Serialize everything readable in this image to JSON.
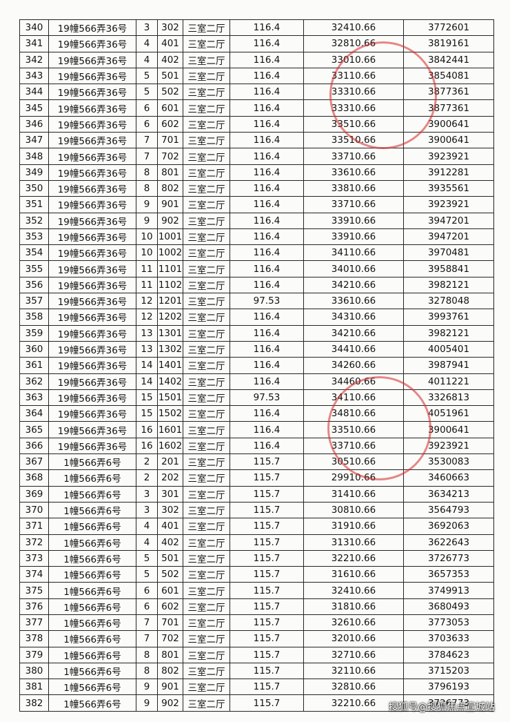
{
  "table": {
    "rows": [
      [
        "340",
        "19幢566弄36号",
        "3",
        "302",
        "三室二厅",
        "116.4",
        "32410.66",
        "3772601"
      ],
      [
        "341",
        "19幢566弄36号",
        "4",
        "401",
        "三室二厅",
        "116.4",
        "32810.66",
        "3819161"
      ],
      [
        "342",
        "19幢566弄36号",
        "4",
        "402",
        "三室二厅",
        "116.4",
        "33010.66",
        "3842441"
      ],
      [
        "343",
        "19幢566弄36号",
        "5",
        "501",
        "三室二厅",
        "116.4",
        "33110.66",
        "3854081"
      ],
      [
        "344",
        "19幢566弄36号",
        "5",
        "502",
        "三室二厅",
        "116.4",
        "33310.66",
        "3877361"
      ],
      [
        "345",
        "19幢566弄36号",
        "6",
        "601",
        "三室二厅",
        "116.4",
        "33310.66",
        "3877361"
      ],
      [
        "346",
        "19幢566弄36号",
        "6",
        "602",
        "三室二厅",
        "116.4",
        "33510.66",
        "3900641"
      ],
      [
        "347",
        "19幢566弄36号",
        "7",
        "701",
        "三室二厅",
        "116.4",
        "33510.66",
        "3900641"
      ],
      [
        "348",
        "19幢566弄36号",
        "7",
        "702",
        "三室二厅",
        "116.4",
        "33710.66",
        "3923921"
      ],
      [
        "349",
        "19幢566弄36号",
        "8",
        "801",
        "三室二厅",
        "116.4",
        "33610.66",
        "3912281"
      ],
      [
        "350",
        "19幢566弄36号",
        "8",
        "802",
        "三室二厅",
        "116.4",
        "33810.66",
        "3935561"
      ],
      [
        "351",
        "19幢566弄36号",
        "9",
        "901",
        "三室二厅",
        "116.4",
        "33710.66",
        "3923921"
      ],
      [
        "352",
        "19幢566弄36号",
        "9",
        "902",
        "三室二厅",
        "116.4",
        "33910.66",
        "3947201"
      ],
      [
        "353",
        "19幢566弄36号",
        "10",
        "1001",
        "三室二厅",
        "116.4",
        "33910.66",
        "3947201"
      ],
      [
        "354",
        "19幢566弄36号",
        "10",
        "1002",
        "三室二厅",
        "116.4",
        "34110.66",
        "3970481"
      ],
      [
        "355",
        "19幢566弄36号",
        "11",
        "1101",
        "三室二厅",
        "116.4",
        "34010.66",
        "3958841"
      ],
      [
        "356",
        "19幢566弄36号",
        "11",
        "1102",
        "三室二厅",
        "116.4",
        "34210.66",
        "3982121"
      ],
      [
        "357",
        "19幢566弄36号",
        "12",
        "1201",
        "三室二厅",
        "97.53",
        "33610.66",
        "3278048"
      ],
      [
        "358",
        "19幢566弄36号",
        "12",
        "1202",
        "三室二厅",
        "116.4",
        "34310.66",
        "3993761"
      ],
      [
        "359",
        "19幢566弄36号",
        "13",
        "1301",
        "三室二厅",
        "116.4",
        "34210.66",
        "3982121"
      ],
      [
        "360",
        "19幢566弄36号",
        "13",
        "1302",
        "三室二厅",
        "116.4",
        "34410.66",
        "4005401"
      ],
      [
        "361",
        "19幢566弄36号",
        "14",
        "1401",
        "三室二厅",
        "116.4",
        "34260.66",
        "3987941"
      ],
      [
        "362",
        "19幢566弄36号",
        "14",
        "1402",
        "三室二厅",
        "116.4",
        "34460.66",
        "4011221"
      ],
      [
        "363",
        "19幢566弄36号",
        "15",
        "1501",
        "三室二厅",
        "97.53",
        "34110.66",
        "3326813"
      ],
      [
        "364",
        "19幢566弄36号",
        "15",
        "1502",
        "三室二厅",
        "116.4",
        "34810.66",
        "4051961"
      ],
      [
        "365",
        "19幢566弄36号",
        "16",
        "1601",
        "三室二厅",
        "116.4",
        "33510.66",
        "3900641"
      ],
      [
        "366",
        "19幢566弄36号",
        "16",
        "1602",
        "三室二厅",
        "116.4",
        "33710.66",
        "3923921"
      ],
      [
        "367",
        "1幢566弄6号",
        "2",
        "201",
        "三室二厅",
        "115.7",
        "30510.66",
        "3530083"
      ],
      [
        "368",
        "1幢566弄6号",
        "2",
        "202",
        "三室二厅",
        "115.7",
        "29910.66",
        "3460663"
      ],
      [
        "369",
        "1幢566弄6号",
        "3",
        "301",
        "三室二厅",
        "115.7",
        "31410.66",
        "3634213"
      ],
      [
        "370",
        "1幢566弄6号",
        "3",
        "302",
        "三室二厅",
        "115.7",
        "30810.66",
        "3564793"
      ],
      [
        "371",
        "1幢566弄6号",
        "4",
        "401",
        "三室二厅",
        "115.7",
        "31910.66",
        "3692063"
      ],
      [
        "372",
        "1幢566弄6号",
        "4",
        "402",
        "三室二厅",
        "115.7",
        "31310.66",
        "3622643"
      ],
      [
        "373",
        "1幢566弄6号",
        "5",
        "501",
        "三室二厅",
        "115.7",
        "32210.66",
        "3726773"
      ],
      [
        "374",
        "1幢566弄6号",
        "5",
        "502",
        "三室二厅",
        "115.7",
        "31610.66",
        "3657353"
      ],
      [
        "375",
        "1幢566弄6号",
        "6",
        "601",
        "三室二厅",
        "115.7",
        "32410.66",
        "3749913"
      ],
      [
        "376",
        "1幢566弄6号",
        "6",
        "602",
        "三室二厅",
        "115.7",
        "31810.66",
        "3680493"
      ],
      [
        "377",
        "1幢566弄6号",
        "7",
        "701",
        "三室二厅",
        "115.7",
        "32610.66",
        "3773053"
      ],
      [
        "378",
        "1幢566弄6号",
        "7",
        "702",
        "三室二厅",
        "115.7",
        "32010.66",
        "3703633"
      ],
      [
        "379",
        "1幢566弄6号",
        "8",
        "801",
        "三室二厅",
        "115.7",
        "32710.66",
        "3784623"
      ],
      [
        "380",
        "1幢566弄6号",
        "8",
        "802",
        "三室二厅",
        "115.7",
        "32110.66",
        "3715203"
      ],
      [
        "381",
        "1幢566弄6号",
        "9",
        "901",
        "三室二厅",
        "115.7",
        "32810.66",
        "3796193"
      ],
      [
        "382",
        "1幢566弄6号",
        "9",
        "902",
        "三室二厅",
        "115.7",
        "32210.66",
        "3726773"
      ]
    ]
  },
  "watermark": "搜狐号@搜狐焦点宣城站"
}
